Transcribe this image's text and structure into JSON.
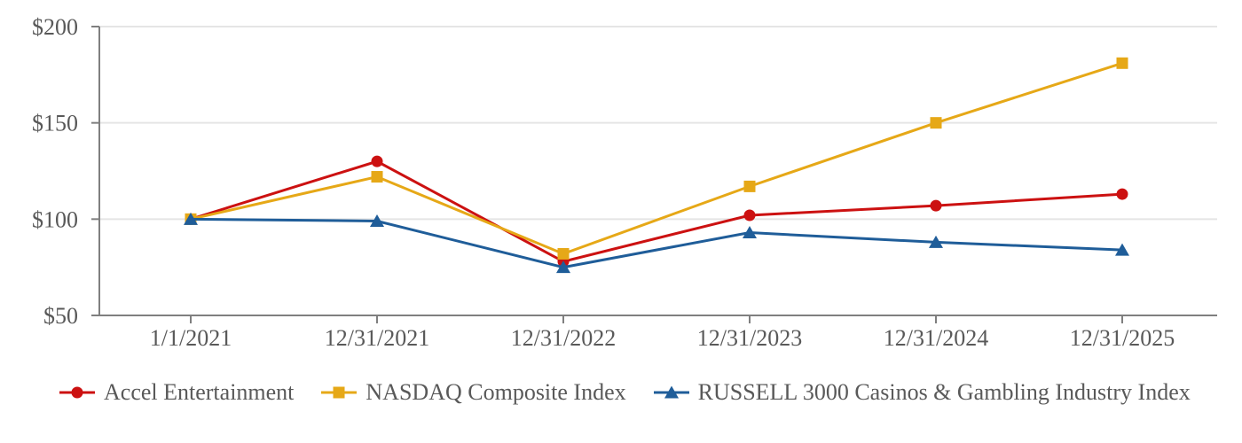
{
  "chart_data": {
    "type": "line",
    "title": "",
    "xlabel": "",
    "ylabel": "",
    "x_categories": [
      "1/1/2021",
      "12/31/2021",
      "12/31/2022",
      "12/31/2023",
      "12/31/2024",
      "12/31/2025"
    ],
    "y_tick_labels": [
      "$200",
      "$150",
      "$100",
      "$50"
    ],
    "y_tick_values": [
      200,
      150,
      100,
      50
    ],
    "ylim": [
      50,
      200
    ],
    "grid": "horizontal",
    "legend_position": "bottom",
    "series": [
      {
        "name": "Accel Entertainment",
        "marker": "circle",
        "color": "#CC1111",
        "values": [
          100,
          130,
          78,
          102,
          107,
          113
        ]
      },
      {
        "name": "NASDAQ Composite Index",
        "marker": "square",
        "color": "#E6A817",
        "values": [
          100,
          122,
          82,
          117,
          150,
          181
        ]
      },
      {
        "name": "RUSSELL 3000 Casinos & Gambling Industry Index",
        "marker": "triangle",
        "color": "#1F5D99",
        "values": [
          100,
          99,
          75,
          93,
          88,
          84
        ]
      }
    ]
  },
  "colors": {
    "axis": "#7F7F7F",
    "gridline": "#E5E5E5",
    "tick_label": "#595959",
    "background": "#FFFFFF"
  }
}
